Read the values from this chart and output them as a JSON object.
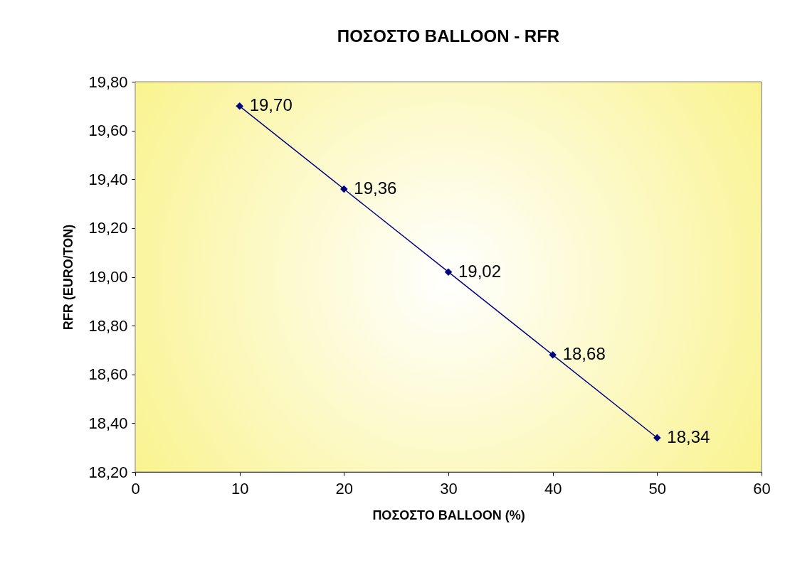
{
  "chart_data": {
    "type": "line",
    "title": "ΠΟΣΟΣΤΟ BALLOON - RFR",
    "xlabel": "ΠΟΣΟΣΤΟ BALLOON (%)",
    "ylabel": "RFR (EURO/TON)",
    "x": [
      10,
      20,
      30,
      40,
      50
    ],
    "series": [
      {
        "color": "#000080",
        "values": [
          19.7,
          19.36,
          19.02,
          18.68,
          18.34
        ],
        "value_labels": [
          "19,70",
          "19,36",
          "19,02",
          "18,68",
          "18,34"
        ]
      }
    ],
    "xlim": [
      0,
      60
    ],
    "xticks": [
      0,
      10,
      20,
      30,
      40,
      50,
      60
    ],
    "ylim": [
      18.2,
      19.8
    ],
    "yticks": [
      {
        "value": 18.2,
        "label": "18,20"
      },
      {
        "value": 18.4,
        "label": "18,40"
      },
      {
        "value": 18.6,
        "label": "18,60"
      },
      {
        "value": 18.8,
        "label": "18,80"
      },
      {
        "value": 19.0,
        "label": "19,00"
      },
      {
        "value": 19.2,
        "label": "19,20"
      },
      {
        "value": 19.4,
        "label": "19,40"
      },
      {
        "value": 19.6,
        "label": "19,60"
      },
      {
        "value": 19.8,
        "label": "19,80"
      }
    ],
    "marker": "diamond",
    "line_style": "solid"
  }
}
